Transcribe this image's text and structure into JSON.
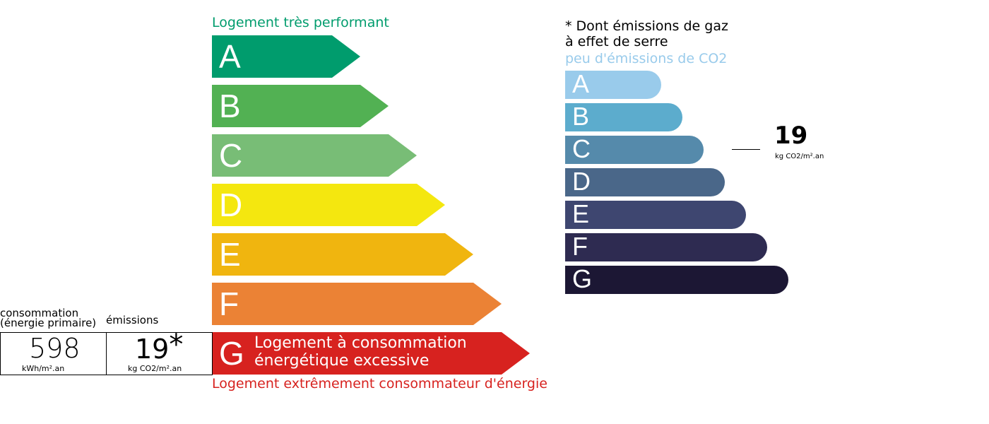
{
  "energy": {
    "top_label": "Logement très performant",
    "bottom_label": "Logement extrêmement consommateur d'énergie",
    "top_color": "#009c6d",
    "bottom_color": "#d7221f",
    "current_class": "G",
    "current_text_line1": "Logement à consommation",
    "current_text_line2": "énergétique excessive",
    "classes": [
      {
        "letter": "A",
        "color": "#009c6d"
      },
      {
        "letter": "B",
        "color": "#52b153"
      },
      {
        "letter": "C",
        "color": "#78bd76"
      },
      {
        "letter": "D",
        "color": "#f4e70f"
      },
      {
        "letter": "E",
        "color": "#f0b50f"
      },
      {
        "letter": "F",
        "color": "#eb8235"
      },
      {
        "letter": "G",
        "color": "#d7221f"
      }
    ]
  },
  "summary": {
    "consumption_label_1": "consommation",
    "consumption_label_2": "(énergie primaire)",
    "emissions_label": "émissions",
    "consumption_value": "598",
    "consumption_unit": "kWh/m².an",
    "emissions_value": "19",
    "emissions_star": "*",
    "emissions_unit": "kg CO2/m².an"
  },
  "climate": {
    "note_line1": "* Dont émissions de gaz",
    "note_line2": "à effet de serre",
    "top_label": "peu d'émissions de CO2",
    "top_color": "#99cbeb",
    "current_class": "C",
    "value": "19",
    "unit": "kg CO2/m².an",
    "classes": [
      {
        "letter": "A",
        "color": "#99cbeb"
      },
      {
        "letter": "B",
        "color": "#5caccd"
      },
      {
        "letter": "C",
        "color": "#558aab"
      },
      {
        "letter": "D",
        "color": "#4a6789"
      },
      {
        "letter": "E",
        "color": "#3e4670"
      },
      {
        "letter": "F",
        "color": "#2e2b51"
      },
      {
        "letter": "G",
        "color": "#1c1734"
      }
    ]
  }
}
